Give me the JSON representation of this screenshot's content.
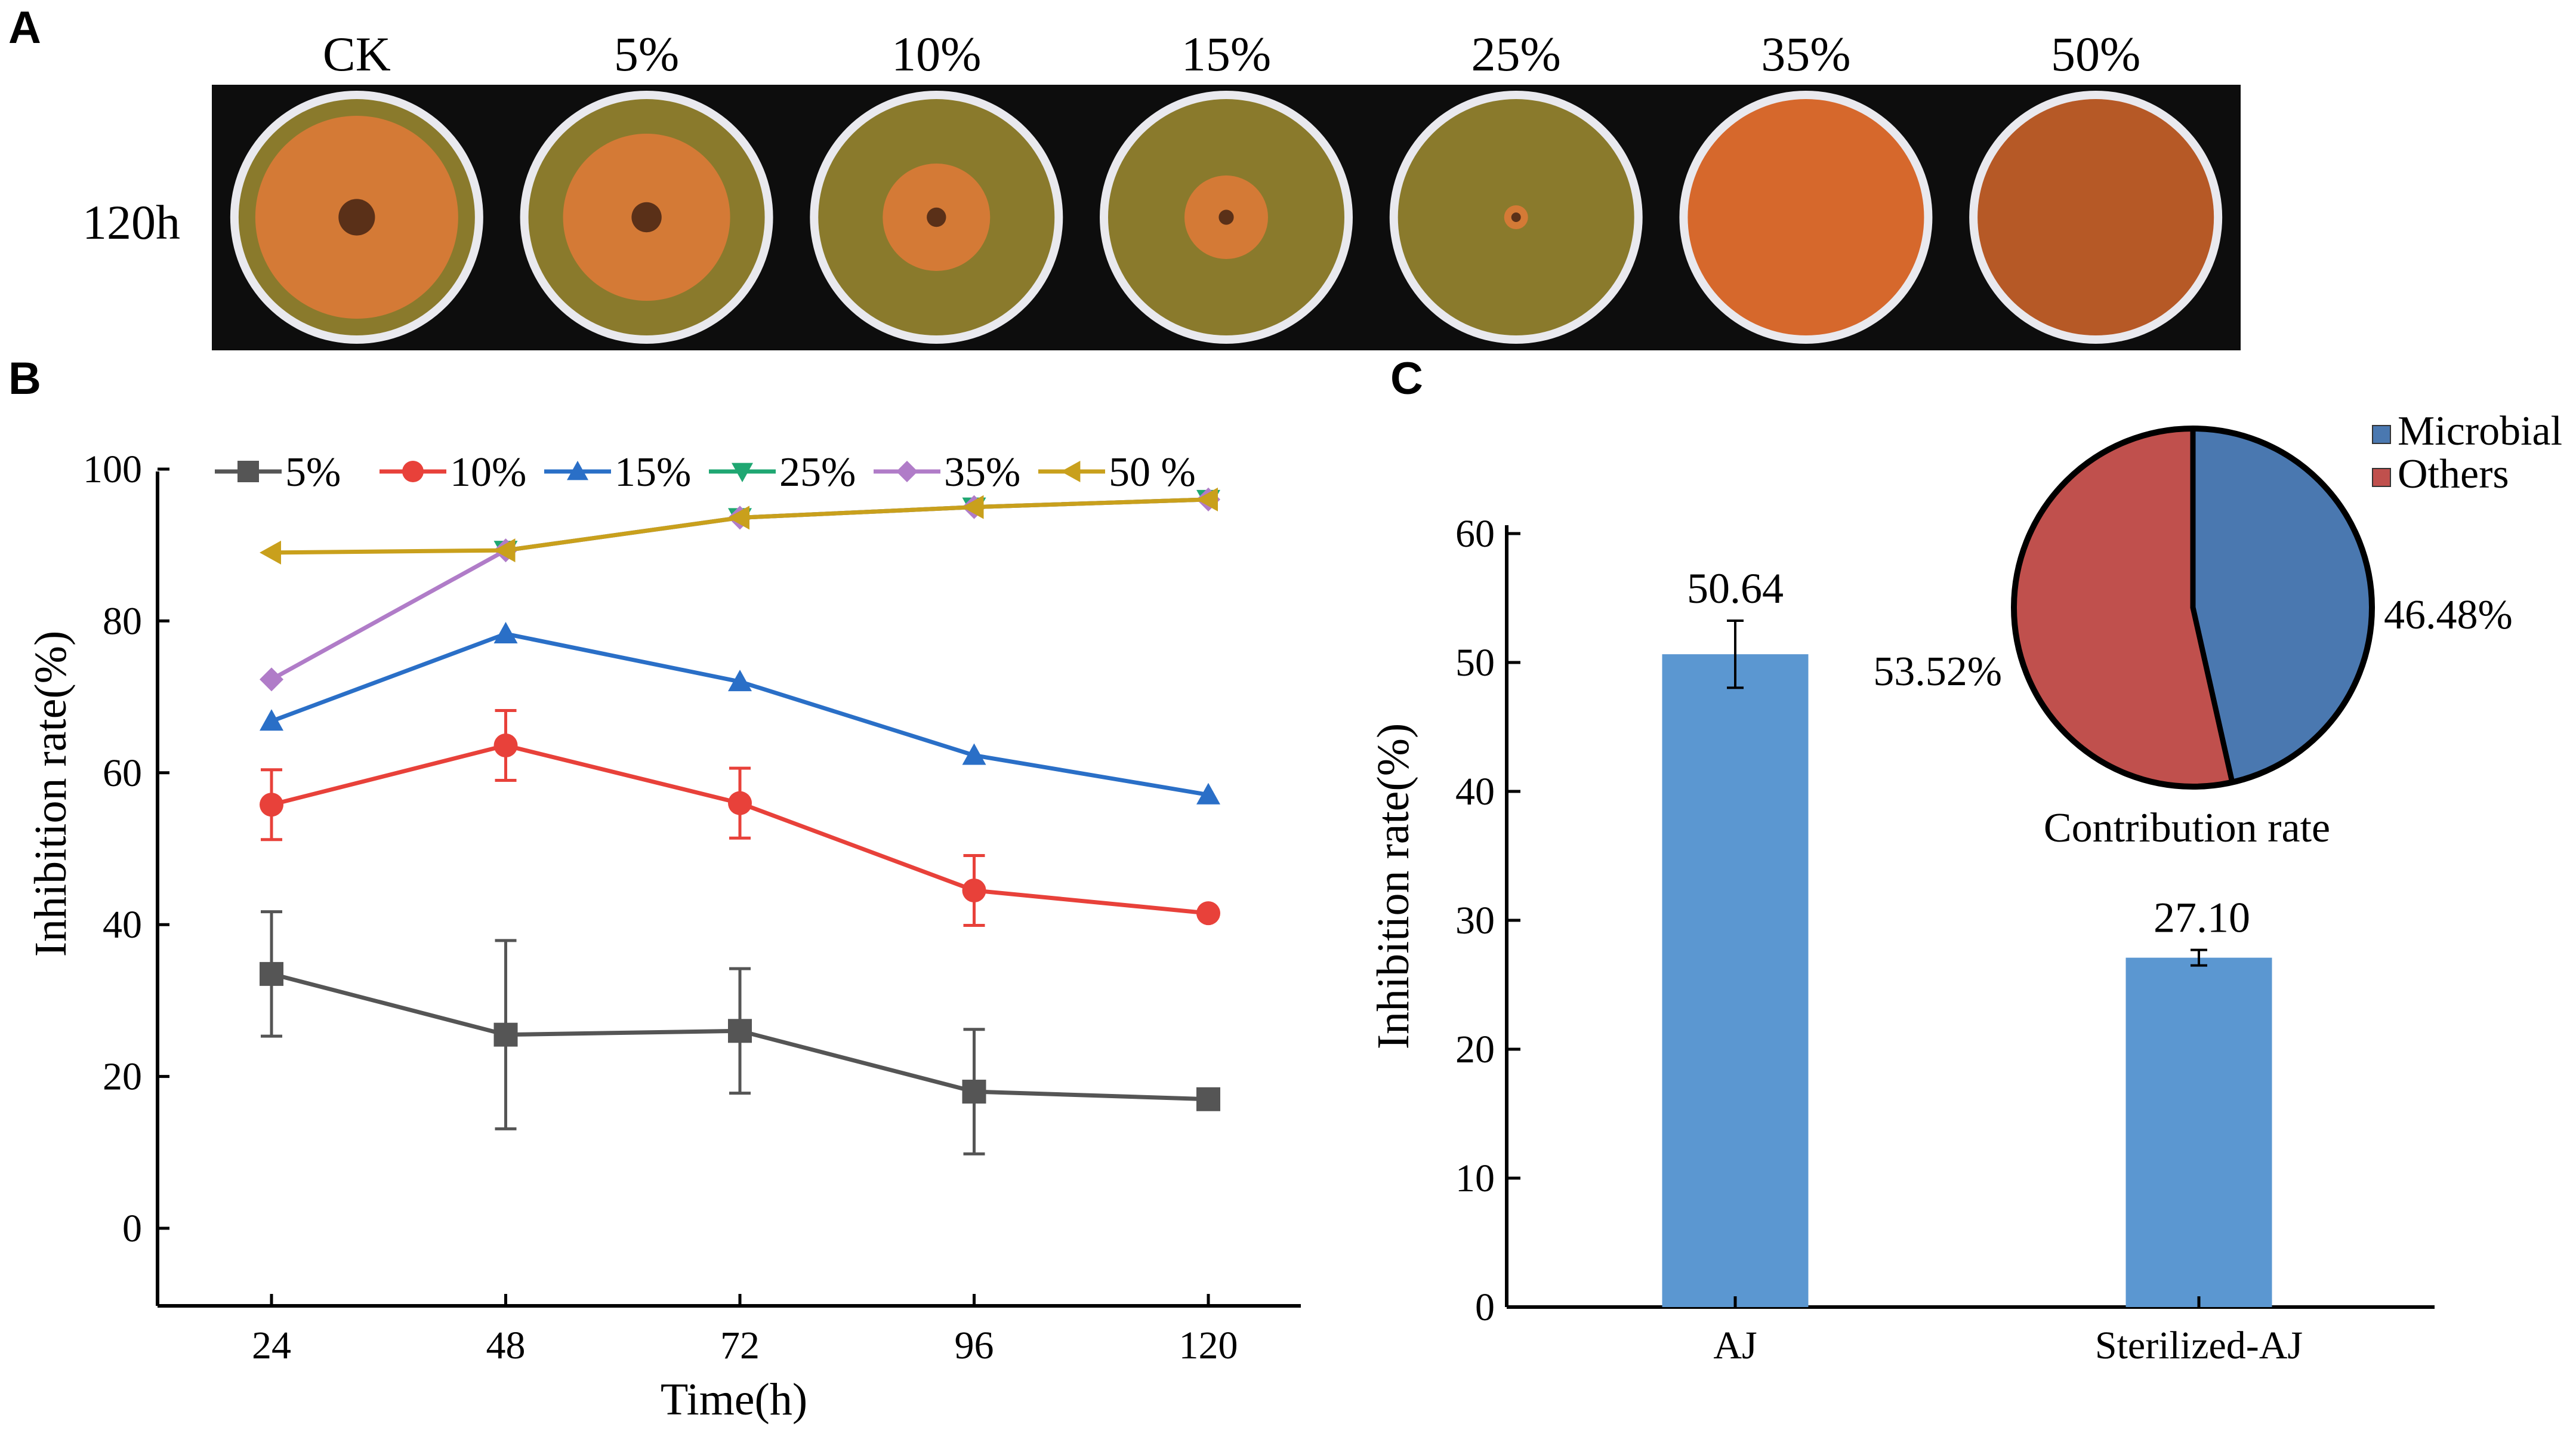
{
  "panels": {
    "a": "A",
    "b": "B",
    "c": "C"
  },
  "photo_panel": {
    "row_label": "120h",
    "columns": [
      "CK",
      "5%",
      "10%",
      "15%",
      "25%",
      "35%",
      "50%"
    ],
    "colors": {
      "background": "#0d0d0d",
      "agar": "#8a7a2c",
      "colony": "#d47a36",
      "center": "#5a3018",
      "full_growth": "#d6682c"
    }
  },
  "chart_data": [
    {
      "id": "B",
      "type": "line",
      "title": "",
      "xlabel": "Time(h)",
      "ylabel": "Inhibition rate(%)",
      "x": [
        24,
        48,
        72,
        96,
        120
      ],
      "xticks": [
        "24",
        "48",
        "72",
        "96",
        "120"
      ],
      "ylim": [
        -10,
        100
      ],
      "yticks": [
        0,
        20,
        40,
        60,
        80,
        100
      ],
      "legend_position": "top",
      "series": [
        {
          "name": "5%",
          "color": "#555555",
          "marker": "square",
          "values": [
            33.5,
            25.5,
            26,
            18,
            17
          ],
          "errors": [
            8.2,
            12.4,
            8.2,
            8.2,
            0
          ]
        },
        {
          "name": "10%",
          "color": "#e8413a",
          "marker": "circle",
          "values": [
            55.8,
            63.6,
            56,
            44.5,
            41.5
          ],
          "errors": [
            4.6,
            4.6,
            4.6,
            4.6,
            0
          ]
        },
        {
          "name": "15%",
          "color": "#2a6fc7",
          "marker": "triangle-up",
          "values": [
            66.8,
            78.3,
            72,
            62.3,
            57.1
          ],
          "errors": [
            0,
            0,
            0,
            0,
            0
          ]
        },
        {
          "name": "25%",
          "color": "#1fa772",
          "marker": "triangle-down",
          "values": [
            null,
            89.3,
            93.6,
            95,
            96
          ],
          "errors": [
            0,
            0,
            0,
            0,
            0
          ]
        },
        {
          "name": "35%",
          "color": "#b07cc8",
          "marker": "diamond",
          "values": [
            72.3,
            89.3,
            93.6,
            95,
            96
          ],
          "errors": [
            0,
            0,
            0,
            0,
            0
          ]
        },
        {
          "name": "50 %",
          "color": "#c9a01c",
          "marker": "triangle-left",
          "values": [
            89,
            89.3,
            93.6,
            95,
            96
          ],
          "errors": [
            0,
            0,
            0,
            0,
            0
          ]
        }
      ]
    },
    {
      "id": "C",
      "type": "bar",
      "title": "",
      "xlabel": "",
      "ylabel": "Inhibition rate(%)",
      "categories": [
        "AJ",
        "Sterilized-AJ"
      ],
      "values": [
        50.64,
        27.1
      ],
      "value_labels": [
        "50.64",
        "27.10"
      ],
      "errors": [
        2.6,
        0.6
      ],
      "ylim": [
        0,
        60
      ],
      "yticks": [
        0,
        10,
        20,
        30,
        40,
        50,
        60
      ],
      "bar_color": "#5b97d1"
    },
    {
      "id": "C-inset",
      "type": "pie",
      "title": "Contribution rate",
      "labels": [
        "Microbial",
        "Others"
      ],
      "values": [
        46.48,
        53.52
      ],
      "value_labels": [
        "46.48%",
        "53.52%"
      ],
      "colors": [
        "#4a78b0",
        "#c0504d"
      ],
      "legend_position": "top-right"
    }
  ]
}
